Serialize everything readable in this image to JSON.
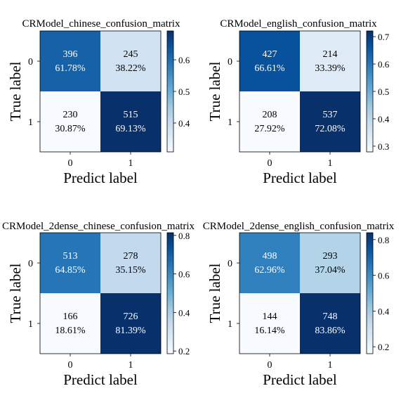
{
  "chart_data": [
    {
      "type": "heatmap",
      "title": "CRModel_chinese_confusion_matrix",
      "xlabel": "Predict label",
      "ylabel": "True label",
      "x_ticks": [
        "0",
        "1"
      ],
      "y_ticks": [
        "0",
        "1"
      ],
      "counts": [
        [
          396,
          245
        ],
        [
          230,
          515
        ]
      ],
      "percents": [
        [
          "61.78%",
          "38.22%"
        ],
        [
          "30.87%",
          "69.13%"
        ]
      ],
      "colorbar": {
        "range": [
          0.3087,
          0.6913
        ],
        "ticks": [
          "0.4",
          "0.5",
          "0.6"
        ]
      }
    },
    {
      "type": "heatmap",
      "title": "CRModel_english_confusion_matrix",
      "xlabel": "Predict label",
      "ylabel": "True label",
      "x_ticks": [
        "0",
        "1"
      ],
      "y_ticks": [
        "0",
        "1"
      ],
      "counts": [
        [
          427,
          214
        ],
        [
          208,
          537
        ]
      ],
      "percents": [
        [
          "66.61%",
          "33.39%"
        ],
        [
          "27.92%",
          "72.08%"
        ]
      ],
      "colorbar": {
        "range": [
          0.2792,
          0.7208
        ],
        "ticks": [
          "0.3",
          "0.4",
          "0.5",
          "0.6",
          "0.7"
        ]
      }
    },
    {
      "type": "heatmap",
      "title": "CRModel_2dense_chinese_confusion_matrix",
      "xlabel": "Predict label",
      "ylabel": "True label",
      "x_ticks": [
        "0",
        "1"
      ],
      "y_ticks": [
        "0",
        "1"
      ],
      "counts": [
        [
          513,
          278
        ],
        [
          166,
          726
        ]
      ],
      "percents": [
        [
          "64.85%",
          "35.15%"
        ],
        [
          "18.61%",
          "81.39%"
        ]
      ],
      "colorbar": {
        "range": [
          0.1861,
          0.8139
        ],
        "ticks": [
          "0.2",
          "0.4",
          "0.6",
          "0.8"
        ]
      }
    },
    {
      "type": "heatmap",
      "title": "CRModel_2dense_english_confusion_matrix",
      "xlabel": "Predict label",
      "ylabel": "True label",
      "x_ticks": [
        "0",
        "1"
      ],
      "y_ticks": [
        "0",
        "1"
      ],
      "counts": [
        [
          498,
          293
        ],
        [
          144,
          748
        ]
      ],
      "percents": [
        [
          "62.96%",
          "37.04%"
        ],
        [
          "16.14%",
          "83.86%"
        ]
      ],
      "colorbar": {
        "range": [
          0.1614,
          0.8386
        ],
        "ticks": [
          "0.2",
          "0.4",
          "0.6",
          "0.8"
        ]
      }
    }
  ]
}
